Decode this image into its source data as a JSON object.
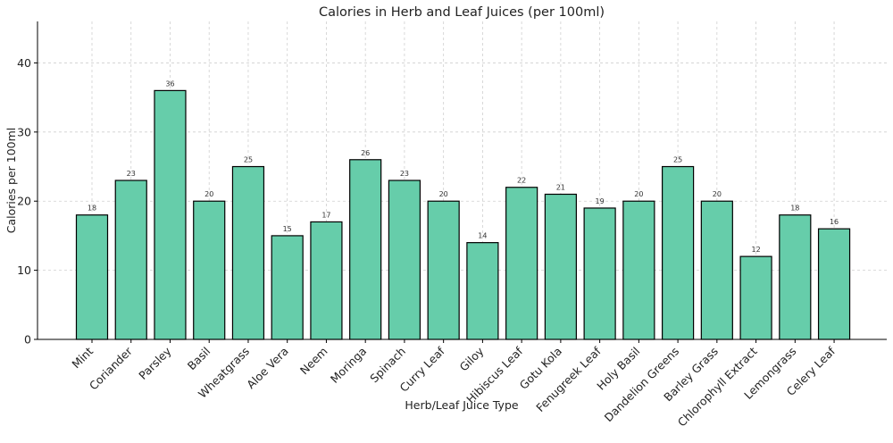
{
  "chart_data": {
    "type": "bar",
    "title": "Calories in Herb and Leaf Juices (per 100ml)",
    "xlabel": "Herb/Leaf Juice Type",
    "ylabel": "Calories per 100ml",
    "categories": [
      "Mint",
      "Coriander",
      "Parsley",
      "Basil",
      "Wheatgrass",
      "Aloe Vera",
      "Neem",
      "Moringa",
      "Spinach",
      "Curry Leaf",
      "Giloy",
      "Hibiscus Leaf",
      "Gotu Kola",
      "Fenugreek Leaf",
      "Holy Basil",
      "Dandelion Greens",
      "Barley Grass",
      "Chlorophyll Extract",
      "Lemongrass",
      "Celery Leaf"
    ],
    "values": [
      18,
      23,
      36,
      20,
      25,
      15,
      17,
      26,
      23,
      20,
      14,
      22,
      21,
      19,
      20,
      25,
      20,
      12,
      18,
      16
    ],
    "ylim": [
      0,
      46
    ],
    "yticks": [
      0,
      10,
      20,
      30,
      40
    ],
    "grid": true,
    "bar_color": "#66cdaa",
    "edge_color": "#000000"
  }
}
